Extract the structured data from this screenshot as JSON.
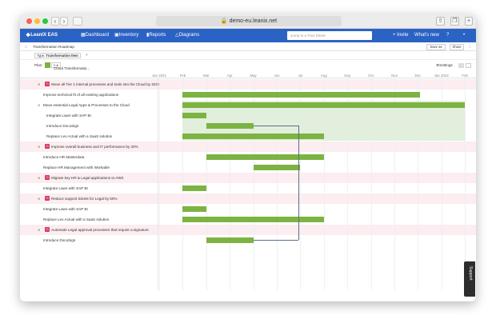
{
  "browser": {
    "url": "demo-eu.leanix.net"
  },
  "nav": {
    "logo": "LeanIX EAS",
    "items": [
      "Dashboard",
      "Inventory",
      "Reports",
      "Diagrams"
    ],
    "search_placeholder": "Jump to a Fact Sheet",
    "invite": "+ Invite",
    "whats_new": "What's new",
    "help": "?",
    "user": "•"
  },
  "toolbar": {
    "title": "Transformation Roadmap",
    "save_as": "Save as",
    "share": "Share"
  },
  "filter": {
    "type_prefix": "Type:",
    "type_value": "Transformation Item",
    "add": "+"
  },
  "plan": {
    "label": "Plan:",
    "value": "Cloud Transformatio...",
    "settings": "Settings"
  },
  "timeline": {
    "months": [
      "Jan 2021",
      "Feb",
      "Mar",
      "Apr",
      "May",
      "Jun",
      "Jul",
      "Aug",
      "Sep",
      "Oct",
      "Nov",
      "Dec",
      "Jan 2022",
      "Feb"
    ]
  },
  "rows": [
    {
      "label": "Move all Tier 1 internal processes and tools into the Cloud by 2022",
      "kind": "objective",
      "badge": "O"
    },
    {
      "label": "Improve technical fit of all existing applications",
      "kind": "item"
    },
    {
      "label": "Move essential Legal Apps & Processes to the Cloud",
      "kind": "group"
    },
    {
      "label": "Integrate Lawn with SAP BI",
      "kind": "child"
    },
    {
      "label": "Introduce DocuSign",
      "kind": "child"
    },
    {
      "label": "Replace Lex Actual with a SaaS solution",
      "kind": "child"
    },
    {
      "label": "Improve overall business and IT performance by 20%",
      "kind": "objective",
      "badge": "O"
    },
    {
      "label": "Introduce HR Masterdata",
      "kind": "item"
    },
    {
      "label": "Replace HR Management with Workable",
      "kind": "item"
    },
    {
      "label": "Migrate key HR & Legal applications to AWS",
      "kind": "objective",
      "badge": "O"
    },
    {
      "label": "Integrate Lawn with SAP BI",
      "kind": "item"
    },
    {
      "label": "Reduce support tickets for Legal by 50%",
      "kind": "objective",
      "badge": "O"
    },
    {
      "label": "Integrate Lawn with SAP BI",
      "kind": "item"
    },
    {
      "label": "Replace Lex Actual with a SaaS solution",
      "kind": "item"
    },
    {
      "label": "Automate Legal approval processes that require a signature",
      "kind": "objective",
      "badge": "O"
    },
    {
      "label": "Introduce DocuSign",
      "kind": "item"
    }
  ],
  "bars": [
    {
      "row": 1,
      "start": 1,
      "end": 11.1
    },
    {
      "row": 2,
      "start": 1,
      "end": 13
    },
    {
      "row": 3,
      "start": 1,
      "end": 2
    },
    {
      "row": 4,
      "start": 2,
      "end": 4
    },
    {
      "row": 5,
      "start": 1,
      "end": 7
    },
    {
      "row": 7,
      "start": 2,
      "end": 7
    },
    {
      "row": 8,
      "start": 4,
      "end": 6
    },
    {
      "row": 10,
      "start": 1,
      "end": 2
    },
    {
      "row": 12,
      "start": 1,
      "end": 2
    },
    {
      "row": 13,
      "start": 1,
      "end": 7
    },
    {
      "row": 15,
      "start": 2,
      "end": 4
    }
  ],
  "support": "Support",
  "colors": {
    "brand": "#2a63c4",
    "bar": "#7cb342",
    "objective_row": "#fbedf0",
    "badge": "#d6385d"
  }
}
